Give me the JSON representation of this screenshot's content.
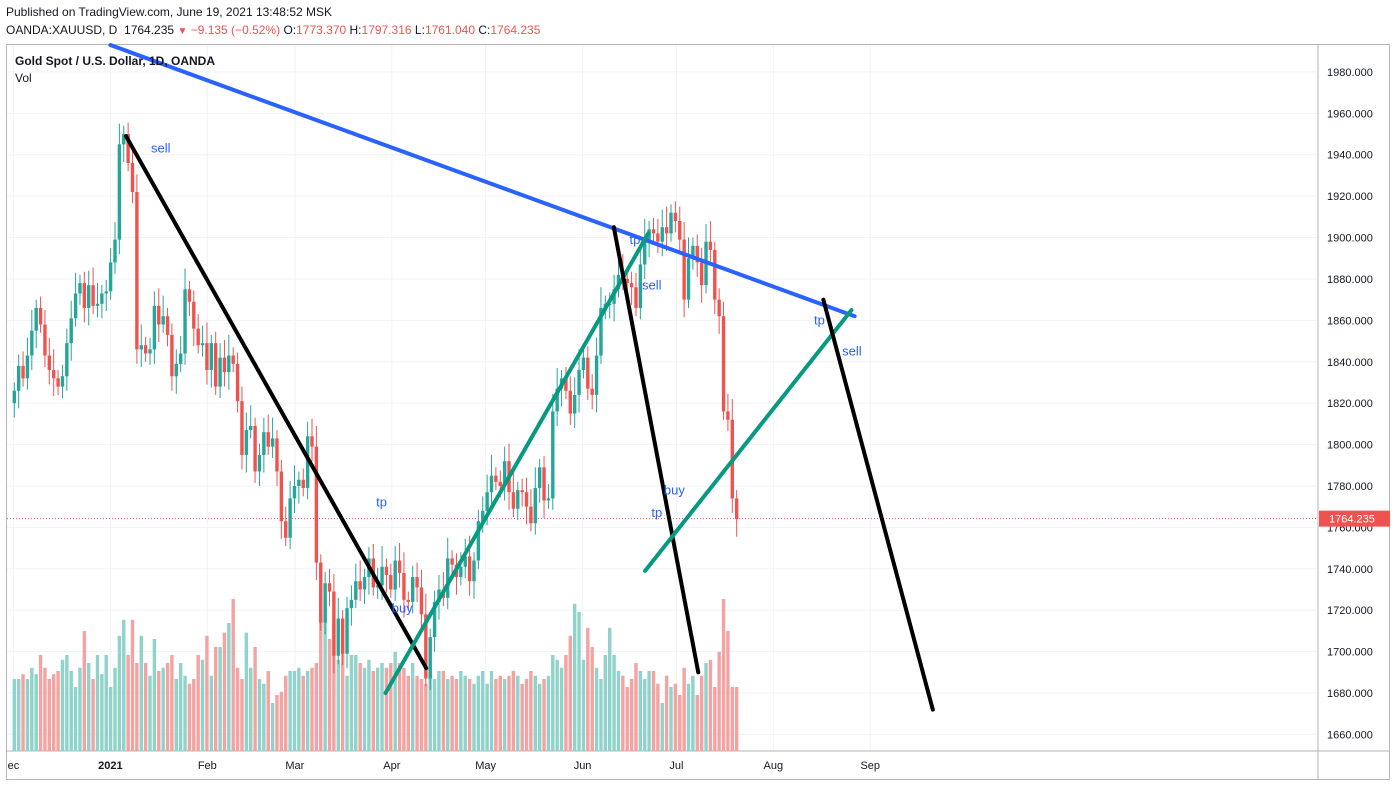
{
  "header": {
    "published": "Published on TradingView.com, June 19, 2021 13:48:52 MSK",
    "symbol": "OANDA:XAUUSD, D",
    "last": "1764.235",
    "change": "−9.135 (−0.52%)",
    "open_label": "O:",
    "open": "1773.370",
    "high_label": "H:",
    "high": "1797.316",
    "low_label": "L:",
    "low": "1761.040",
    "close_label": "C:",
    "close": "1764.235"
  },
  "legend": {
    "title": "Gold Spot / U.S. Dollar, 1D, OANDA",
    "volume": "Vol"
  },
  "colors": {
    "up": "#26a69a",
    "down": "#ef5350",
    "vol_up": "#8fd3ca",
    "vol_down": "#f3a3a1",
    "blue_line": "#2962ff",
    "teal_line": "#089981",
    "black_line": "#000000",
    "label_blue": "#2962ff",
    "price_line": "#ef5350"
  },
  "chart_data": {
    "type": "candlestick",
    "symbol": "XAUUSD",
    "y_axis": {
      "ticks": [
        1660,
        1680,
        1700,
        1720,
        1740,
        1760,
        1780,
        1800,
        1820,
        1840,
        1860,
        1880,
        1900,
        1920,
        1940,
        1960,
        1980
      ],
      "tick_format": "0.000",
      "range": [
        1652,
        1993
      ]
    },
    "x_axis": {
      "labels": [
        {
          "label": "ec",
          "date": "2020-12-01"
        },
        {
          "label": "2021",
          "date": "2021-01-01"
        },
        {
          "label": "Feb",
          "date": "2021-02-01"
        },
        {
          "label": "Mar",
          "date": "2021-03-01"
        },
        {
          "label": "Apr",
          "date": "2021-04-01"
        },
        {
          "label": "May",
          "date": "2021-05-01"
        },
        {
          "label": "Jun",
          "date": "2021-06-01"
        },
        {
          "label": "Jul",
          "date": "2021-07-01"
        },
        {
          "label": "Aug",
          "date": "2021-08-01"
        },
        {
          "label": "Sep",
          "date": "2021-09-01"
        }
      ]
    },
    "last_price": {
      "value": 1764.235,
      "label": "1764.235"
    },
    "closes": [
      1826,
      1838,
      1832,
      1843,
      1855,
      1866,
      1858,
      1843,
      1836,
      1832,
      1828,
      1833,
      1849,
      1861,
      1873,
      1878,
      1866,
      1877,
      1867,
      1868,
      1873,
      1874,
      1888,
      1899,
      1945,
      1950,
      1936,
      1922,
      1846,
      1848,
      1844,
      1846,
      1867,
      1858,
      1862,
      1853,
      1833,
      1839,
      1844,
      1875,
      1869,
      1856,
      1848,
      1849,
      1836,
      1849,
      1828,
      1842,
      1835,
      1843,
      1839,
      1821,
      1795,
      1807,
      1809,
      1787,
      1795,
      1806,
      1799,
      1803,
      1787,
      1763,
      1755,
      1774,
      1780,
      1783,
      1779,
      1804,
      1799,
      1743,
      1714,
      1733,
      1729,
      1698,
      1716,
      1699,
      1721,
      1725,
      1734,
      1730,
      1736,
      1745,
      1731,
      1732,
      1741,
      1737,
      1730,
      1744,
      1738,
      1725,
      1724,
      1736,
      1731,
      1718,
      1687,
      1707,
      1724,
      1730,
      1726,
      1745,
      1742,
      1736,
      1741,
      1746,
      1734,
      1744,
      1763,
      1768,
      1777,
      1785,
      1782,
      1780,
      1792,
      1777,
      1769,
      1778,
      1777,
      1770,
      1762,
      1779,
      1789,
      1773,
      1774,
      1816,
      1827,
      1832,
      1826,
      1815,
      1824,
      1836,
      1842,
      1827,
      1824,
      1843,
      1866,
      1868,
      1868,
      1875,
      1882,
      1880,
      1878,
      1876,
      1866,
      1887,
      1899,
      1904,
      1902,
      1898,
      1905,
      1902,
      1912,
      1908,
      1899,
      1870,
      1890,
      1896,
      1888,
      1877,
      1898,
      1894,
      1870,
      1862,
      1816,
      1812,
      1774,
      1764
    ],
    "volume": {
      "relative_heights": [
        0.45,
        0.45,
        0.48,
        0.45,
        0.52,
        0.48,
        0.6,
        0.52,
        0.45,
        0.48,
        0.5,
        0.57,
        0.6,
        0.5,
        0.4,
        0.52,
        0.75,
        0.55,
        0.45,
        0.6,
        0.48,
        0.6,
        0.4,
        0.52,
        0.72,
        0.82,
        0.6,
        0.82,
        0.55,
        0.72,
        0.55,
        0.47,
        0.7,
        0.5,
        0.52,
        0.55,
        0.6,
        0.45,
        0.55,
        0.47,
        0.42,
        0.45,
        0.6,
        0.57,
        0.72,
        0.47,
        0.65,
        0.65,
        0.74,
        0.8,
        0.95,
        0.52,
        0.45,
        0.74,
        0.52,
        0.65,
        0.45,
        0.42,
        0.5,
        0.3,
        0.35,
        0.37,
        0.47,
        0.5,
        0.5,
        0.52,
        0.47,
        0.5,
        0.52,
        0.55,
        0.87,
        0.95,
        0.7,
        0.8,
        0.57,
        0.65,
        0.47,
        0.6,
        0.6,
        0.55,
        0.52,
        0.57,
        0.5,
        0.52,
        0.55,
        0.52,
        0.55,
        0.62,
        0.55,
        0.52,
        0.47,
        0.55,
        0.47,
        0.45,
        0.42,
        0.5,
        0.45,
        0.5,
        0.5,
        0.45,
        0.47,
        0.45,
        0.5,
        0.47,
        0.45,
        0.42,
        0.47,
        0.5,
        0.42,
        0.5,
        0.45,
        0.47,
        0.45,
        0.47,
        0.5,
        0.47,
        0.42,
        0.45,
        0.5,
        0.47,
        0.42,
        0.45,
        0.47,
        0.6,
        0.57,
        0.52,
        0.6,
        0.72,
        0.92,
        0.87,
        0.57,
        0.77,
        0.65,
        0.52,
        0.45,
        0.6,
        0.77,
        0.6,
        0.5,
        0.47,
        0.4,
        0.45,
        0.55,
        0.5,
        0.45,
        0.5,
        0.5,
        0.42,
        0.3,
        0.47,
        0.4,
        0.42,
        0.35,
        0.52,
        0.42,
        0.47,
        0.35,
        0.47,
        0.55,
        0.57,
        0.4,
        0.62,
        0.95,
        0.75
      ],
      "color_by": "candle direction"
    },
    "drawings": [
      {
        "name": "blue-resistance",
        "color": "#2962ff",
        "from": {
          "date": "2021-01-01",
          "price": 1993
        },
        "to": {
          "date": "2021-08-27",
          "price": 1862
        }
      },
      {
        "name": "black-downtrend-1",
        "color": "#000000",
        "from": {
          "date": "2021-01-06",
          "price": 1949
        },
        "to": {
          "date": "2021-04-12",
          "price": 1692
        }
      },
      {
        "name": "teal-uptrend-1",
        "color": "#089981",
        "from": {
          "date": "2021-03-30",
          "price": 1680
        },
        "to": {
          "date": "2021-06-22",
          "price": 1902
        }
      },
      {
        "name": "black-downtrend-2",
        "color": "#000000",
        "from": {
          "date": "2021-06-11",
          "price": 1905
        },
        "to": {
          "date": "2021-07-08",
          "price": 1690
        }
      },
      {
        "name": "teal-uptrend-2",
        "color": "#089981",
        "from": {
          "date": "2021-06-21",
          "price": 1739
        },
        "to": {
          "date": "2021-08-26",
          "price": 1865
        }
      },
      {
        "name": "black-downtrend-3",
        "color": "#000000",
        "from": {
          "date": "2021-08-17",
          "price": 1870
        },
        "to": {
          "date": "2021-09-21",
          "price": 1672
        }
      }
    ],
    "annotations": [
      {
        "text": "sell",
        "date": "2021-01-14",
        "price": 1941
      },
      {
        "text": "tp",
        "date": "2021-03-27",
        "price": 1770
      },
      {
        "text": "buy",
        "date": "2021-04-01",
        "price": 1719
      },
      {
        "text": "tp",
        "date": "2021-06-16",
        "price": 1897
      },
      {
        "text": "sell",
        "date": "2021-06-20",
        "price": 1875
      },
      {
        "text": "tp",
        "date": "2021-06-23",
        "price": 1765
      },
      {
        "text": "buy",
        "date": "2021-06-27",
        "price": 1776
      },
      {
        "text": "tp",
        "date": "2021-08-14",
        "price": 1858
      },
      {
        "text": "sell",
        "date": "2021-08-23",
        "price": 1843
      }
    ]
  }
}
